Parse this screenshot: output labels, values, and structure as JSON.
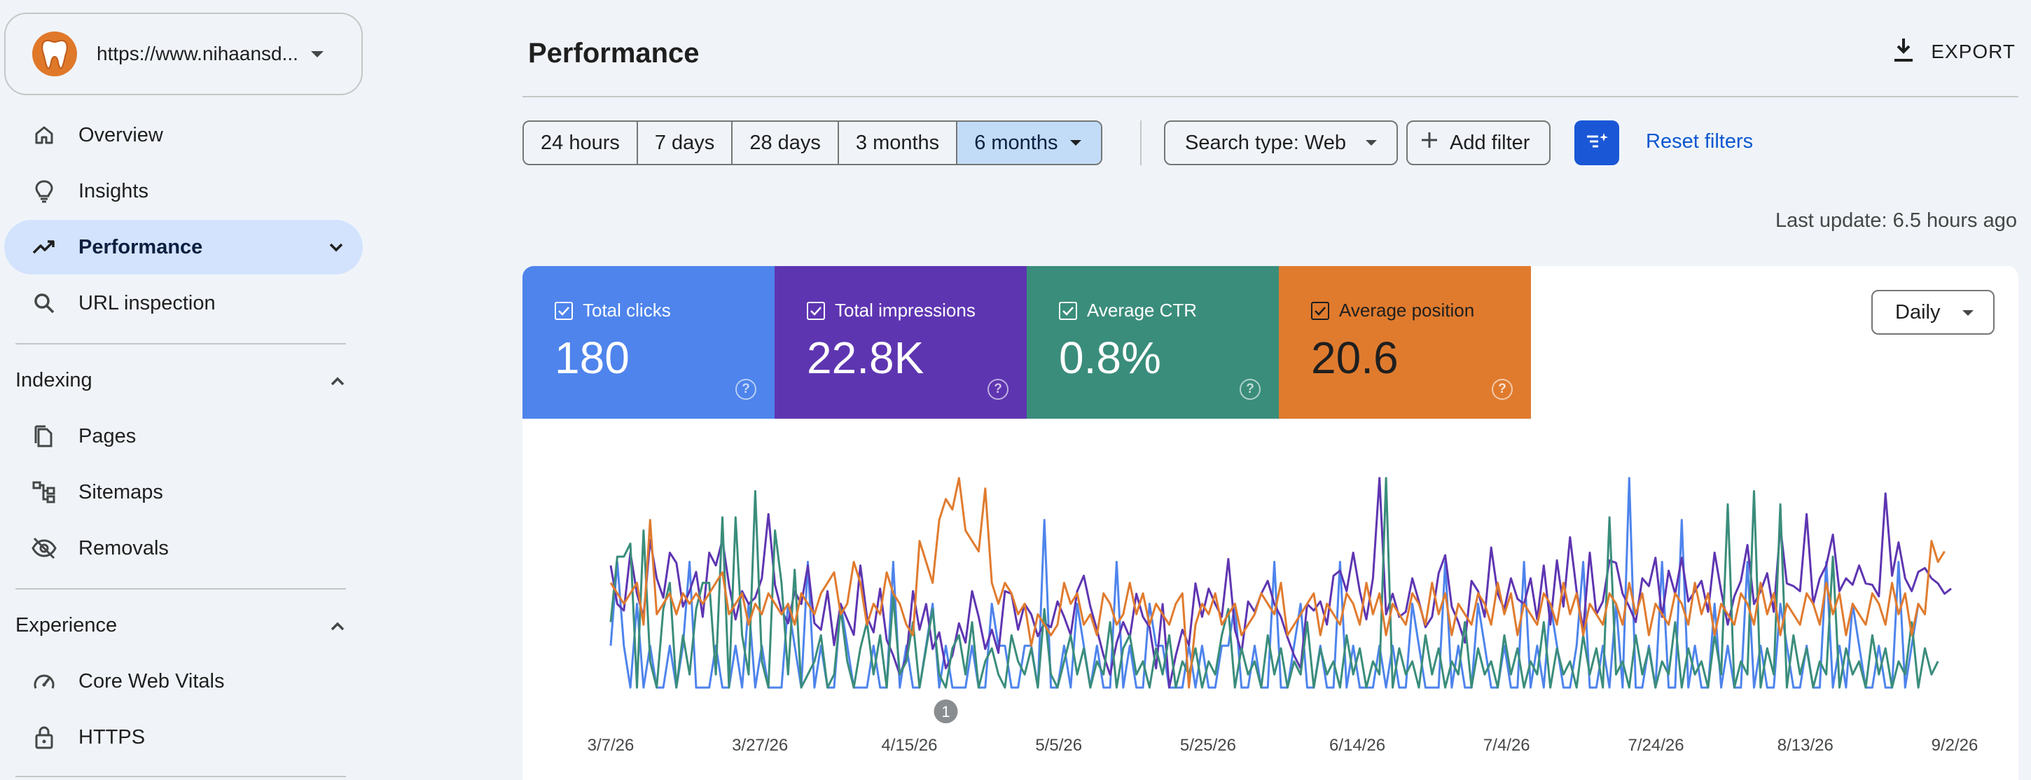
{
  "property": {
    "url": "https://www.nihaansd..."
  },
  "nav": {
    "overview": "Overview",
    "insights": "Insights",
    "performance": "Performance",
    "url_inspection": "URL inspection"
  },
  "sections": {
    "indexing": {
      "title": "Indexing",
      "items": [
        "Pages",
        "Sitemaps",
        "Removals"
      ]
    },
    "experience": {
      "title": "Experience",
      "items": [
        "Core Web Vitals",
        "HTTPS"
      ]
    }
  },
  "header": {
    "title": "Performance",
    "export_label": "EXPORT"
  },
  "filters": {
    "ranges": [
      "24 hours",
      "7 days",
      "28 days",
      "3 months",
      "6 months"
    ],
    "selected_range": "6 months",
    "search_type": "Search type: Web",
    "add_filter": "Add filter",
    "reset": "Reset filters"
  },
  "last_update": "Last update: 6.5 hours ago",
  "metrics": {
    "clicks": {
      "label": "Total clicks",
      "value": "180",
      "color": "#4e84ec"
    },
    "impressions": {
      "label": "Total impressions",
      "value": "22.8K",
      "color": "#5e35b1"
    },
    "ctr": {
      "label": "Average CTR",
      "value": "0.8%",
      "color": "#3a8d7b"
    },
    "position": {
      "label": "Average position",
      "value": "20.6",
      "color": "#e07b2e"
    }
  },
  "granularity": "Daily",
  "chart_data": {
    "type": "line",
    "x_ticks": [
      "3/7/26",
      "3/27/26",
      "4/15/26",
      "5/5/26",
      "5/25/26",
      "6/14/26",
      "7/4/26",
      "7/24/26",
      "8/13/26",
      "9/2/26"
    ],
    "annotation": {
      "label": "1",
      "date": "4/22/26"
    },
    "series": [
      {
        "name": "Total clicks",
        "color": "#4e84ec",
        "values": [
          1,
          3,
          1,
          0,
          2,
          0,
          1,
          0,
          0,
          1,
          0,
          1,
          3,
          0,
          0,
          0,
          1,
          0,
          0,
          1,
          0,
          2,
          0,
          1,
          0,
          0,
          0,
          2,
          1,
          0,
          3,
          0,
          1,
          0,
          0,
          2,
          1,
          0,
          0,
          0,
          1,
          0,
          0,
          3,
          0,
          1,
          0,
          0,
          1,
          2,
          0,
          1,
          0,
          0,
          0,
          1,
          0,
          0,
          2,
          1,
          1,
          0,
          0,
          1,
          1,
          0,
          4,
          0,
          0,
          1,
          0,
          2,
          1,
          0,
          1,
          0,
          0,
          3,
          0,
          1,
          0,
          0,
          2,
          1,
          1,
          0,
          0,
          0,
          1,
          0,
          1,
          0,
          0,
          1,
          1,
          2,
          0,
          0,
          1,
          0,
          0,
          3,
          0,
          0,
          1,
          2,
          0,
          0,
          1,
          0,
          0,
          3,
          0,
          1,
          0,
          0,
          0,
          1,
          0,
          1,
          0,
          0,
          2,
          1,
          0,
          0,
          0,
          3,
          0,
          1,
          0,
          0,
          2,
          1,
          0,
          0,
          1,
          0,
          0,
          3,
          0,
          1,
          0,
          2,
          1,
          0,
          0,
          1,
          3,
          0,
          0,
          1,
          0,
          2,
          0,
          5,
          0,
          0,
          1,
          0,
          3,
          0,
          0,
          4,
          0,
          1,
          0,
          0,
          2,
          0,
          1,
          0,
          0,
          3,
          0,
          1,
          0,
          0,
          2,
          1,
          0,
          0,
          1,
          0,
          0,
          3,
          0,
          1,
          0,
          2,
          1,
          0,
          0,
          1,
          0,
          0,
          3,
          0,
          1,
          2
        ]
      },
      {
        "name": "Total impressions",
        "color": "#5e35b1",
        "values": [
          140,
          110,
          105,
          150,
          118,
          100,
          160,
          130,
          115,
          150,
          142,
          108,
          120,
          135,
          100,
          150,
          140,
          160,
          125,
          98,
          120,
          110,
          115,
          130,
          180,
          125,
          105,
          95,
          120,
          110,
          140,
          95,
          90,
          120,
          78,
          110,
          98,
          86,
          140,
          100,
          88,
          122,
          82,
          70,
          55,
          68,
          120,
          90,
          110,
          75,
          88,
          60,
          70,
          95,
          80,
          120,
          100,
          75,
          90,
          72,
          120,
          118,
          90,
          110,
          102,
          85,
          95,
          92,
          112,
          100,
          86,
          120,
          132,
          108,
          90,
          70,
          55,
          80,
          96,
          84,
          118,
          100,
          92,
          60,
          110,
          45,
          70,
          90,
          78,
          126,
          100,
          122,
          110,
          100,
          145,
          90,
          72,
          112,
          104,
          118,
          128,
          110,
          100,
          84,
          70,
          60,
          110,
          105,
          112,
          94,
          132,
          136,
          120,
          150,
          120,
          98,
          130,
          208,
          102,
          118,
          100,
          104,
          130,
          112,
          92,
          100,
          134,
          148,
          108,
          96,
          80,
          128,
          120,
          100,
          154,
          118,
          106,
          130,
          114,
          110,
          130,
          98,
          140,
          94,
          144,
          108,
          162,
          120,
          90,
          150,
          102,
          112,
          144,
          142,
          118,
          108,
          96,
          130,
          124,
          146,
          100,
          136,
          118,
          146,
          112,
          120,
          128,
          104,
          150,
          120,
          94,
          116,
          128,
          156,
          110,
          120,
          134,
          104,
          170,
          126,
          124,
          120,
          180,
          110,
          130,
          140,
          164,
          120,
          130,
          125,
          140,
          126,
          125,
          116,
          196,
          132,
          158,
          130,
          120,
          135,
          138,
          130,
          126,
          118,
          122
        ]
      },
      {
        "name": "Average CTR",
        "color": "#3a8d7b",
        "values": [
          0.7,
          1.2,
          1.2,
          1.3,
          0.2,
          1.4,
          0.4,
          0.2,
          0.8,
          1.0,
          0.2,
          0.6,
          0.3,
          0.8,
          1.0,
          1.0,
          0.3,
          1.5,
          0.2,
          1.5,
          0.6,
          0.3,
          1.7,
          0.4,
          0.2,
          1.4,
          1.0,
          0.3,
          1.1,
          0.2,
          0.3,
          0.4,
          0.6,
          0.2,
          0.3,
          0.8,
          0.4,
          0.2,
          0.5,
          0.7,
          0.3,
          0.6,
          0.2,
          0.9,
          0.3,
          0.4,
          0.7,
          0.2,
          0.5,
          0.8,
          0.3,
          0.2,
          0.5,
          0.6,
          0.3,
          0.7,
          0.2,
          0.4,
          0.5,
          0.3,
          0.2,
          0.6,
          0.4,
          0.3,
          0.5,
          0.2,
          0.8,
          0.3,
          0.2,
          0.4,
          0.6,
          0.3,
          0.5,
          0.2,
          0.4,
          0.3,
          0.7,
          0.2,
          0.5,
          0.6,
          0.3,
          0.4,
          0.2,
          0.5,
          0.3,
          0.6,
          0.2,
          0.4,
          0.3,
          0.5,
          0.2,
          0.4,
          0.3,
          0.6,
          0.8,
          0.2,
          0.5,
          0.3,
          0.4,
          0.2,
          0.6,
          0.3,
          0.5,
          0.2,
          0.4,
          0.3,
          0.7,
          0.2,
          0.5,
          0.3,
          0.4,
          0.2,
          0.6,
          0.3,
          0.5,
          0.2,
          0.4,
          0.3,
          1.8,
          0.2,
          0.5,
          0.3,
          0.4,
          0.2,
          0.6,
          0.3,
          0.5,
          0.2,
          0.4,
          0.3,
          0.7,
          0.2,
          0.5,
          0.3,
          0.4,
          0.2,
          0.6,
          0.3,
          0.5,
          0.2,
          0.4,
          0.3,
          0.7,
          0.2,
          0.5,
          0.3,
          0.4,
          0.2,
          0.6,
          0.3,
          0.5,
          0.2,
          1.5,
          0.3,
          0.4,
          0.2,
          0.6,
          0.3,
          0.5,
          0.2,
          0.4,
          0.3,
          0.7,
          0.2,
          0.5,
          0.3,
          0.4,
          0.2,
          0.6,
          0.3,
          1.6,
          0.2,
          0.4,
          0.3,
          1.7,
          0.2,
          0.5,
          0.3,
          1.6,
          0.2,
          0.6,
          0.3,
          0.5,
          0.2,
          0.4,
          0.3,
          1.2,
          0.2,
          0.5,
          0.3,
          0.4,
          0.2,
          0.6,
          0.3,
          0.5,
          0.2,
          0.4,
          0.3,
          0.7,
          0.2,
          0.5,
          0.3,
          0.4
        ]
      },
      {
        "name": "Average position",
        "color": "#e07b2e",
        "values": [
          22,
          21,
          20,
          21,
          22,
          18,
          28,
          19,
          20,
          21,
          19,
          21,
          20,
          21,
          20,
          21,
          22,
          23,
          19,
          20,
          21,
          18,
          20,
          19,
          21,
          20,
          19,
          20,
          18,
          21,
          20,
          19,
          21,
          22,
          23,
          19,
          20,
          24,
          22,
          18,
          20,
          19,
          23,
          21,
          20,
          18,
          17,
          26,
          24,
          22,
          28,
          30,
          29,
          32,
          27,
          26,
          25,
          31,
          22,
          20,
          22,
          21,
          19,
          20,
          16,
          19,
          18,
          17,
          18,
          22,
          20,
          21,
          18,
          19,
          17,
          21,
          20,
          18,
          19,
          22,
          19,
          21,
          18,
          20,
          19,
          18,
          20,
          21,
          12,
          18,
          20,
          19,
          21,
          18,
          19,
          20,
          17,
          18,
          19,
          21,
          20,
          19,
          22,
          17,
          18,
          19,
          20,
          21,
          17,
          20,
          19,
          18,
          21,
          20,
          18,
          22,
          19,
          21,
          17,
          20,
          19,
          18,
          21,
          20,
          18,
          22,
          19,
          21,
          17,
          20,
          19,
          18,
          21,
          20,
          18,
          22,
          19,
          21,
          17,
          20,
          19,
          18,
          21,
          20,
          18,
          22,
          19,
          21,
          17,
          20,
          19,
          18,
          21,
          20,
          18,
          22,
          19,
          21,
          17,
          20,
          19,
          18,
          21,
          20,
          18,
          22,
          19,
          21,
          17,
          20,
          19,
          18,
          21,
          20,
          18,
          22,
          19,
          21,
          17,
          20,
          19,
          18,
          21,
          20,
          18,
          22,
          19,
          21,
          17,
          20,
          19,
          18,
          21,
          20,
          18,
          22,
          19,
          21,
          17,
          20,
          19,
          26,
          24,
          25
        ]
      }
    ]
  }
}
